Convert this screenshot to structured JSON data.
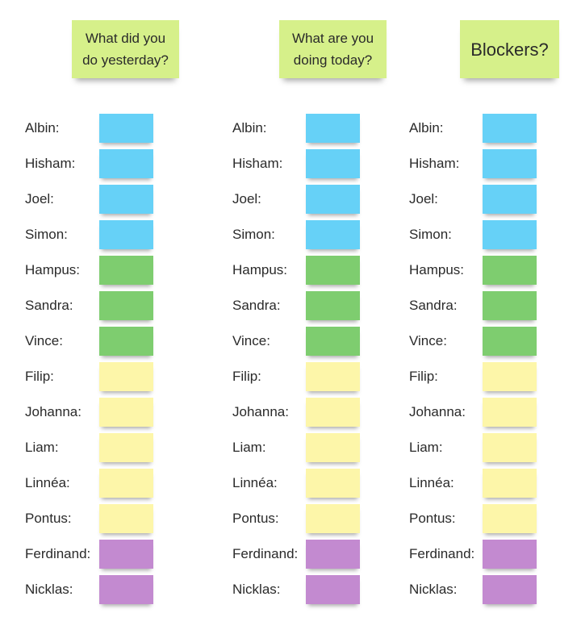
{
  "columns": [
    {
      "title": "What did you\ndo yesterday?"
    },
    {
      "title": "What are you\ndoing today?"
    },
    {
      "title": "Blockers?"
    }
  ],
  "colors": {
    "header_note": "#d6f08a",
    "blue": "#66d1f7",
    "green": "#7ecd6f",
    "yellow": "#fdf6a9",
    "purple": "#c38ad0"
  },
  "people": [
    {
      "name": "Albin:",
      "color": "blue"
    },
    {
      "name": "Hisham:",
      "color": "blue"
    },
    {
      "name": "Joel:",
      "color": "blue"
    },
    {
      "name": "Simon:",
      "color": "blue"
    },
    {
      "name": "Hampus:",
      "color": "green"
    },
    {
      "name": "Sandra:",
      "color": "green"
    },
    {
      "name": "Vince:",
      "color": "green"
    },
    {
      "name": "Filip:",
      "color": "yellow"
    },
    {
      "name": "Johanna:",
      "color": "yellow"
    },
    {
      "name": "Liam:",
      "color": "yellow"
    },
    {
      "name": "Linnéa:",
      "color": "yellow"
    },
    {
      "name": "Pontus:",
      "color": "yellow"
    },
    {
      "name": "Ferdinand:",
      "color": "purple"
    },
    {
      "name": "Nicklas:",
      "color": "purple"
    }
  ]
}
